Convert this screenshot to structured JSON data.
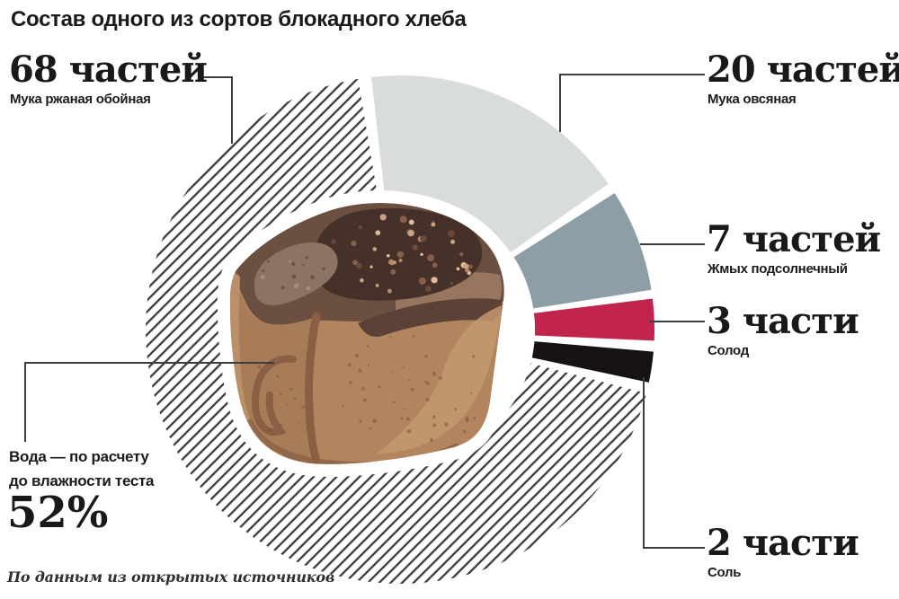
{
  "title": "Состав одного из сортов блокадного хлеба",
  "slices": [
    {
      "amount": "68 частей",
      "name": "Мука ржаная обойная",
      "fill": "white-black-hatching"
    },
    {
      "amount": "20 частей",
      "name": "Мука овсяная",
      "fill": "#d9ddd9"
    },
    {
      "amount": "7 частей",
      "name": "Жмых подсолнечный",
      "fill": "#8d9ea6"
    },
    {
      "amount": "3 части",
      "name": "Солод",
      "fill": "#c1254c"
    },
    {
      "amount": "2 части",
      "name": "Соль",
      "fill": "#171216"
    }
  ],
  "water": {
    "line1": "Вода — по расчету",
    "line2": "до влажности теста",
    "value": "52%"
  },
  "source": "По данным из открытых источников",
  "center_illustration": "loaf-of-rye-bread",
  "chart_data": {
    "type": "pie",
    "donut": true,
    "title": "Состав одного из сортов блокадного хлеба",
    "categories": [
      "Мука ржаная обойная",
      "Мука овсяная",
      "Жмых подсолнечный",
      "Солод",
      "Соль"
    ],
    "values": [
      68,
      20,
      7,
      3,
      2
    ],
    "unit": "частей",
    "value_labels": [
      "68 частей",
      "20 частей",
      "7 частей",
      "3 части",
      "2 части"
    ],
    "colors": [
      "white-with-diagonal-hatching",
      "#d9ddd9",
      "#8d9ea6",
      "#c1254c",
      "#171216"
    ],
    "annotation": "Вода — по расчету до влажности теста 52%",
    "source": "По данным из открытых источников",
    "legend_position": "callout-labels-around-chart",
    "start_angle_deg": -6.5,
    "direction": "clockwise"
  }
}
